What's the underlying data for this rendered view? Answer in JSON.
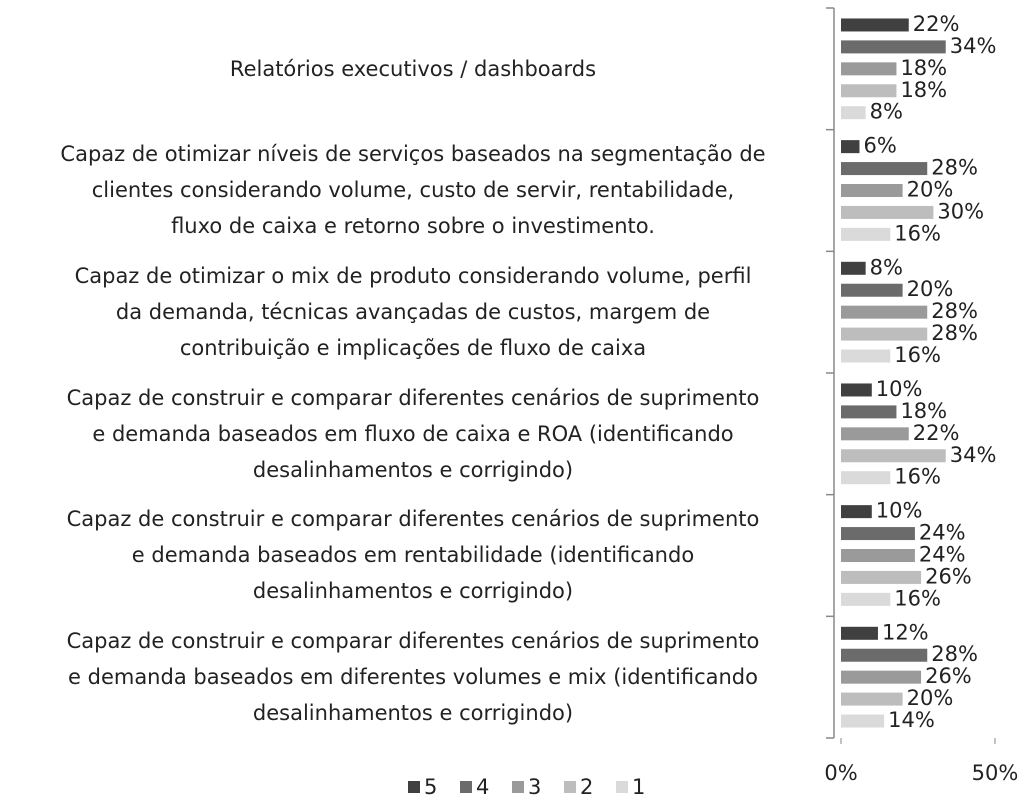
{
  "chart_data": {
    "type": "hbar",
    "categories": [
      "Relatórios executivos / dashboards",
      "Capaz de otimizar níveis de serviços baseados na segmentação de\nclientes considerando volume, custo de servir, rentabilidade,\nfluxo de caixa e retorno sobre o investimento.",
      "Capaz de otimizar o mix de produto considerando volume, perfil\nda demanda, técnicas avançadas de custos, margem de\ncontribuição e implicações de fluxo de caixa",
      "Capaz de construir e comparar diferentes cenários de suprimento\ne demanda baseados em fluxo de caixa e ROA (identificando\ndesalinhamentos e corrigindo)",
      "Capaz de construir e comparar diferentes cenários de suprimento\ne demanda baseados em rentabilidade (identificando\ndesalinhamentos e corrigindo)",
      "Capaz de construir e comparar diferentes cenários de suprimento\ne demanda baseados em diferentes volumes e mix (identificando\ndesalinhamentos e corrigindo)"
    ],
    "series": [
      {
        "name": "5",
        "color": "#404040",
        "values": [
          22,
          6,
          8,
          10,
          10,
          12
        ],
        "value_labels": [
          "22%",
          "6%",
          "8%",
          "10%",
          "10%",
          "12%"
        ]
      },
      {
        "name": "4",
        "color": "#6b6b6b",
        "values": [
          34,
          28,
          20,
          18,
          24,
          28
        ],
        "value_labels": [
          "34%",
          "28%",
          "20%",
          "18%",
          "24%",
          "28%"
        ]
      },
      {
        "name": "3",
        "color": "#9a9a9a",
        "values": [
          18,
          20,
          28,
          22,
          24,
          26
        ],
        "value_labels": [
          "18%",
          "20%",
          "28%",
          "22%",
          "24%",
          "26%"
        ]
      },
      {
        "name": "2",
        "color": "#bdbdbd",
        "values": [
          18,
          30,
          28,
          34,
          26,
          20
        ],
        "value_labels": [
          "18%",
          "30%",
          "28%",
          "34%",
          "26%",
          "20%"
        ]
      },
      {
        "name": "1",
        "color": "#dadada",
        "values": [
          8,
          16,
          16,
          16,
          16,
          14
        ],
        "value_labels": [
          "8%",
          "16%",
          "16%",
          "16%",
          "16%",
          "14%"
        ]
      }
    ],
    "xlim": [
      0,
      50
    ],
    "xticks": [
      {
        "value": 0,
        "label": "0%"
      },
      {
        "value": 50,
        "label": "50%"
      }
    ],
    "legend": "bottom"
  }
}
